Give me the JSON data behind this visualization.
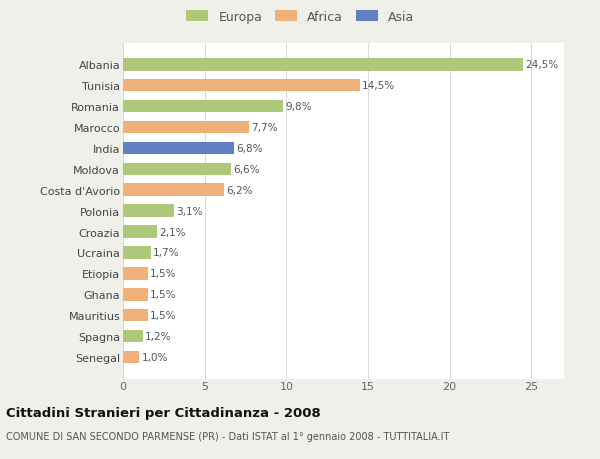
{
  "countries": [
    "Albania",
    "Tunisia",
    "Romania",
    "Marocco",
    "India",
    "Moldova",
    "Costa d'Avorio",
    "Polonia",
    "Croazia",
    "Ucraina",
    "Etiopia",
    "Ghana",
    "Mauritius",
    "Spagna",
    "Senegal"
  ],
  "values": [
    24.5,
    14.5,
    9.8,
    7.7,
    6.8,
    6.6,
    6.2,
    3.1,
    2.1,
    1.7,
    1.5,
    1.5,
    1.5,
    1.2,
    1.0
  ],
  "labels": [
    "24,5%",
    "14,5%",
    "9,8%",
    "7,7%",
    "6,8%",
    "6,6%",
    "6,2%",
    "3,1%",
    "2,1%",
    "1,7%",
    "1,5%",
    "1,5%",
    "1,5%",
    "1,2%",
    "1,0%"
  ],
  "continents": [
    "Europa",
    "Africa",
    "Europa",
    "Africa",
    "Asia",
    "Europa",
    "Africa",
    "Europa",
    "Europa",
    "Europa",
    "Africa",
    "Africa",
    "Africa",
    "Europa",
    "Africa"
  ],
  "colors": {
    "Europa": "#adc87a",
    "Africa": "#f0b07a",
    "Asia": "#6080c0"
  },
  "xlim": [
    0,
    27
  ],
  "xticks": [
    0,
    5,
    10,
    15,
    20,
    25
  ],
  "title": "Cittadini Stranieri per Cittadinanza - 2008",
  "subtitle": "COMUNE DI SAN SECONDO PARMENSE (PR) - Dati ISTAT al 1° gennaio 2008 - TUTTITALIA.IT",
  "bg_color": "#f0f0eb",
  "bar_bg_color": "#ffffff",
  "grid_color": "#d8d8d8",
  "label_fontsize": 7.5,
  "ytick_fontsize": 8.0,
  "xtick_fontsize": 8.0,
  "legend_fontsize": 9.0,
  "title_fontsize": 9.5,
  "subtitle_fontsize": 7.0
}
